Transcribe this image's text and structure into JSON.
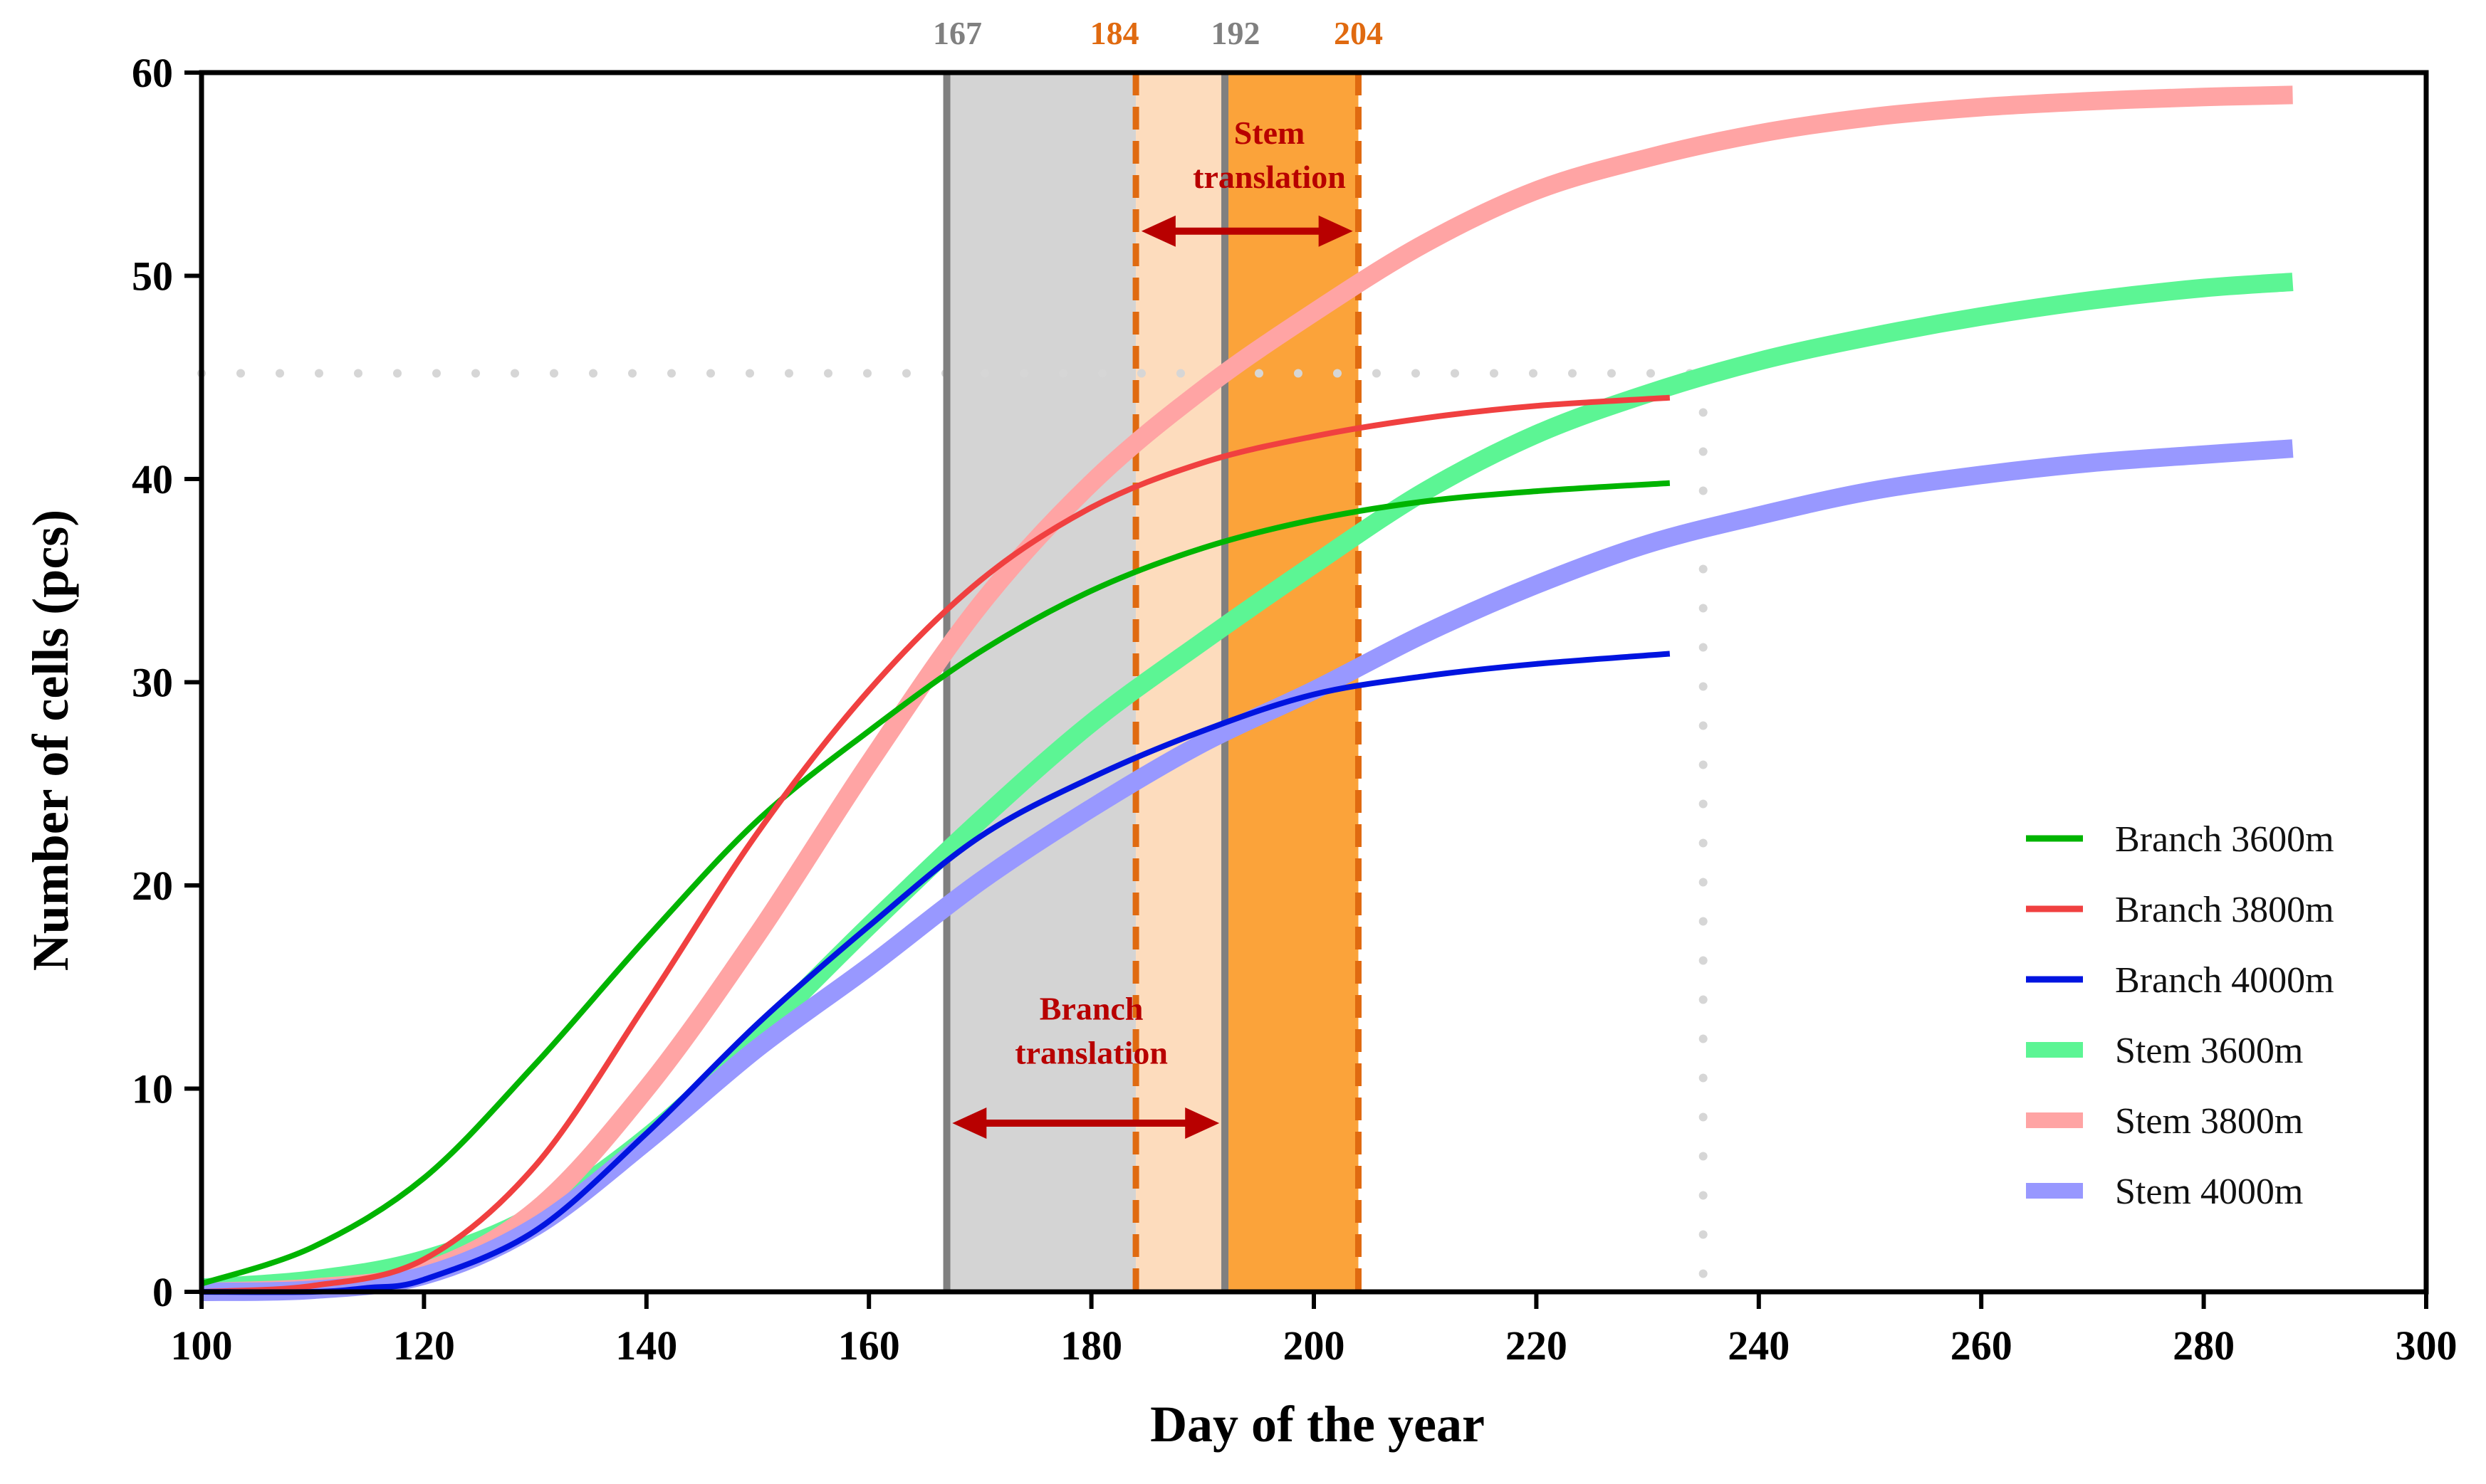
{
  "chart_data": {
    "type": "line",
    "xlabel": "Day of the year",
    "ylabel": "Number of cells (pcs)",
    "xlim": [
      100,
      300
    ],
    "ylim": [
      0,
      60
    ],
    "xticks": [
      100,
      120,
      140,
      160,
      180,
      200,
      220,
      240,
      260,
      280,
      300
    ],
    "yticks": [
      0,
      10,
      20,
      30,
      40,
      50,
      60
    ],
    "grid": false,
    "legend_position": "bottom-right",
    "series": [
      {
        "name": "Branch 3600m",
        "color": "#00b400",
        "style": "thin",
        "x": [
          100,
          110,
          120,
          130,
          140,
          150,
          160,
          170,
          180,
          190,
          200,
          210,
          220,
          232
        ],
        "y": [
          0.4,
          2.2,
          5.6,
          11.2,
          17.4,
          23.2,
          27.6,
          31.5,
          34.5,
          36.6,
          38.0,
          38.9,
          39.4,
          39.8
        ]
      },
      {
        "name": "Branch 3800m",
        "color": "#f04040",
        "style": "thin",
        "x": [
          100,
          110,
          120,
          130,
          140,
          150,
          160,
          170,
          180,
          190,
          200,
          210,
          220,
          232
        ],
        "y": [
          0.0,
          0.3,
          1.6,
          6.2,
          14.2,
          22.6,
          29.6,
          35.0,
          38.6,
          40.8,
          42.1,
          43.0,
          43.6,
          44.0
        ]
      },
      {
        "name": "Branch 4000m",
        "color": "#0014e0",
        "style": "thin",
        "x": [
          100,
          110,
          115,
          120,
          130,
          140,
          150,
          160,
          170,
          180,
          190,
          200,
          210,
          220,
          232
        ],
        "y": [
          0.0,
          0.0,
          0.2,
          0.6,
          3.0,
          7.8,
          13.2,
          18.0,
          22.4,
          25.3,
          27.6,
          29.4,
          30.3,
          30.9,
          31.4
        ]
      },
      {
        "name": "Stem 3600m",
        "color": "#5cf594",
        "style": "thick",
        "x": [
          100,
          110,
          120,
          130,
          140,
          150,
          160,
          170,
          180,
          190,
          200,
          210,
          220,
          230,
          240,
          250,
          260,
          270,
          280,
          288
        ],
        "y": [
          0.2,
          0.6,
          1.6,
          3.8,
          7.6,
          12.6,
          18.0,
          23.2,
          28.0,
          32.0,
          35.8,
          39.4,
          42.2,
          44.2,
          45.8,
          47.0,
          48.0,
          48.8,
          49.4,
          49.7
        ]
      },
      {
        "name": "Stem 3800m",
        "color": "#ffa4a4",
        "style": "thick",
        "x": [
          100,
          110,
          120,
          130,
          140,
          150,
          160,
          170,
          180,
          190,
          200,
          210,
          220,
          230,
          240,
          250,
          260,
          270,
          280,
          288
        ],
        "y": [
          0.0,
          0.2,
          1.0,
          4.0,
          10.0,
          17.6,
          26.0,
          33.8,
          39.8,
          44.4,
          48.2,
          51.6,
          54.2,
          55.8,
          57.0,
          57.8,
          58.3,
          58.6,
          58.8,
          58.9
        ]
      },
      {
        "name": "Stem 4000m",
        "color": "#9898ff",
        "style": "thick",
        "x": [
          100,
          110,
          120,
          130,
          140,
          150,
          160,
          170,
          180,
          190,
          200,
          210,
          220,
          230,
          240,
          250,
          260,
          270,
          280,
          288
        ],
        "y": [
          0.0,
          0.1,
          0.8,
          3.2,
          7.4,
          12.0,
          16.0,
          20.2,
          23.8,
          27.0,
          29.6,
          32.4,
          34.8,
          36.8,
          38.2,
          39.4,
          40.2,
          40.8,
          41.2,
          41.5
        ]
      }
    ],
    "reference_lines": {
      "horizontal_dotted_y": 45.2,
      "horizontal_dotted_x_end": 235,
      "vertical_dotted_x": 235
    },
    "bands": [
      {
        "name": "branch-period",
        "x_start": 167,
        "x_end": 184,
        "color": "#d4d4d4"
      },
      {
        "name": "branch-overlap",
        "x_start": 184,
        "x_end": 192,
        "color": "#fddcbd"
      },
      {
        "name": "stem-period",
        "x_start": 192,
        "x_end": 204,
        "color": "#fba33a"
      }
    ],
    "vlines": [
      {
        "x": 167,
        "label": "167",
        "color": "#808080",
        "style": "solid"
      },
      {
        "x": 184,
        "label": "184",
        "color": "#e06a10",
        "style": "dashed"
      },
      {
        "x": 192,
        "label": "192",
        "color": "#808080",
        "style": "solid"
      },
      {
        "x": 204,
        "label": "204",
        "color": "#e06a10",
        "style": "dashed"
      }
    ],
    "annotations": [
      {
        "name": "stem-translation",
        "lines": [
          "Stem",
          "translation"
        ],
        "x": 196,
        "y": 56.5,
        "arrow_from": 184.5,
        "arrow_to": 203.5,
        "arrow_y": 52.2
      },
      {
        "name": "branch-translation",
        "lines": [
          "Branch",
          "translation"
        ],
        "x": 180,
        "y": 13.4,
        "arrow_from": 167.5,
        "arrow_to": 191.5,
        "arrow_y": 8.3
      }
    ],
    "annotation_color": "#b80000"
  }
}
